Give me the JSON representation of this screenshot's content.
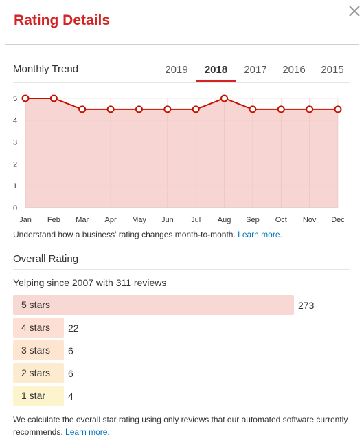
{
  "header": {
    "title": "Rating Details",
    "close_icon": "close-icon"
  },
  "trend": {
    "section_title": "Monthly Trend",
    "years": [
      "2019",
      "2018",
      "2017",
      "2016",
      "2015"
    ],
    "selected_year": "2018",
    "caption_text": "Understand how a business' rating changes month-to-month.",
    "caption_link": "Learn more."
  },
  "chart_data": {
    "type": "area",
    "categories": [
      "Jan",
      "Feb",
      "Mar",
      "Apr",
      "May",
      "Jun",
      "Jul",
      "Aug",
      "Sep",
      "Oct",
      "Nov",
      "Dec"
    ],
    "values": [
      5,
      5,
      4.5,
      4.5,
      4.5,
      4.5,
      4.5,
      5,
      4.5,
      4.5,
      4.5,
      4.5
    ],
    "yticks": [
      "0",
      "1",
      "2",
      "3",
      "4",
      "5"
    ],
    "ylim": [
      0,
      5
    ],
    "grid": true,
    "colors": {
      "line": "#c41200",
      "fill": "#f6d5d2",
      "marker_fill": "#ffffff"
    }
  },
  "overall": {
    "section_title": "Overall Rating",
    "summary": "Yelping since 2007 with 311 reviews",
    "bars": [
      {
        "label": "5 stars",
        "count": "273",
        "value": 273,
        "color": "#f8d8d3"
      },
      {
        "label": "4 stars",
        "count": "22",
        "value": 22,
        "color": "#fde0d3"
      },
      {
        "label": "3 stars",
        "count": "6",
        "value": 6,
        "color": "#fde5d0"
      },
      {
        "label": "2 stars",
        "count": "6",
        "value": 6,
        "color": "#fdebd0"
      },
      {
        "label": "1 star",
        "count": "4",
        "value": 4,
        "color": "#fdf3cd"
      }
    ],
    "footer_text": "We calculate the overall star rating using only reviews that our automated software currently recommends.",
    "footer_link": "Learn more."
  }
}
